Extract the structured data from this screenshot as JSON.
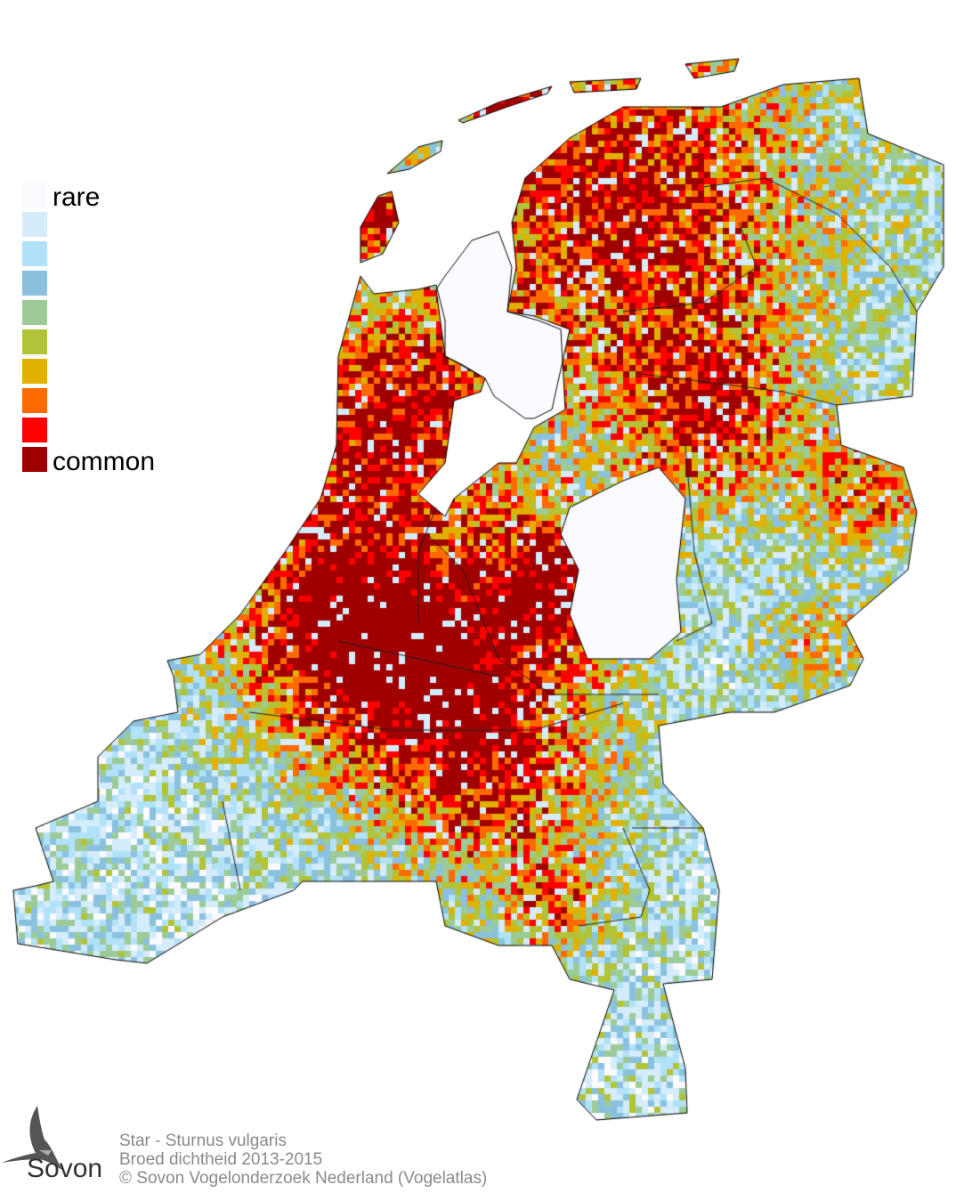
{
  "legend": {
    "label_low": "rare",
    "label_high": "common",
    "colors": [
      "#fbfbff",
      "#d4ecfb",
      "#b1e2f9",
      "#8ac1de",
      "#9ccb97",
      "#b2c338",
      "#e0b100",
      "#ff6a00",
      "#ff0000",
      "#a00000"
    ]
  },
  "footer": {
    "line1": "Star - Sturnus vulgaris",
    "line2": "Broed dichtheid 2013-2015",
    "line3": "© Sovon Vogelonderzoek Nederland (Vogelatlas)"
  },
  "logo": {
    "text": "Sovon"
  }
}
